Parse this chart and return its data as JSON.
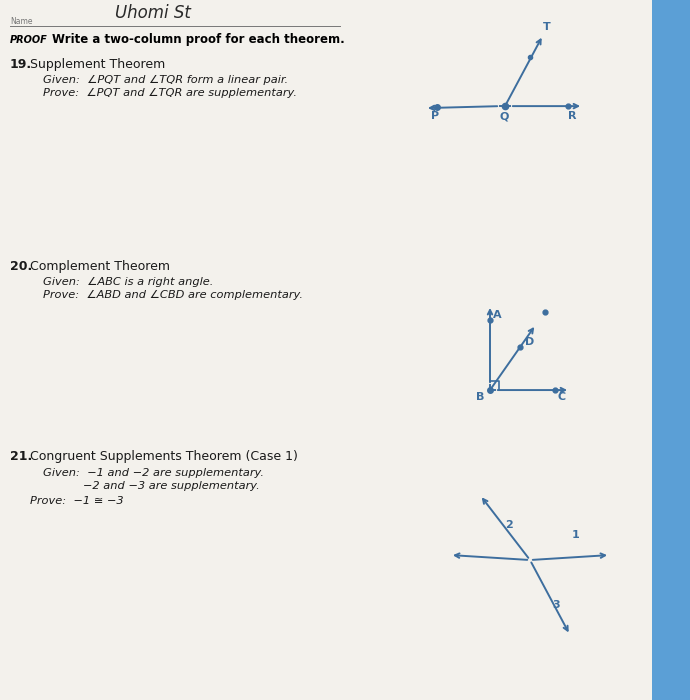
{
  "bg_color": "#d8d5cc",
  "page_color": "#edeae2",
  "page_color2": "#f2f0ea",
  "binding_color": "#5b9fd6",
  "diagram_color": "#3d6e9e",
  "text_dark": "#1a1a1a",
  "text_label": "#3d6e9e",
  "handwritten": "Uhomi St",
  "name_label": "Name",
  "proof_label": "PROOF",
  "header": "Write a two-column proof for each theorem.",
  "items": [
    {
      "num": "19.",
      "title": "Supplement Theorem",
      "lines": [
        "Given:  ∠PQT and ∠TQR form a linear pair.",
        "Prove:  ∠PQT and ∠TQR are supplementary."
      ]
    },
    {
      "num": "20.",
      "title": "Complement Theorem",
      "lines": [
        "Given:  ∠ABC is a right angle.",
        "Prove:  ∠ABD and ∠CBD are complementary."
      ]
    },
    {
      "num": "21.",
      "title": "Congruent Supplements Theorem (Case 1)",
      "lines": [
        "Given:  −1 and −2 are supplementary.",
        "           −2 and −3 are supplementary.",
        "Prove:  −1 ≅ −3"
      ]
    }
  ]
}
